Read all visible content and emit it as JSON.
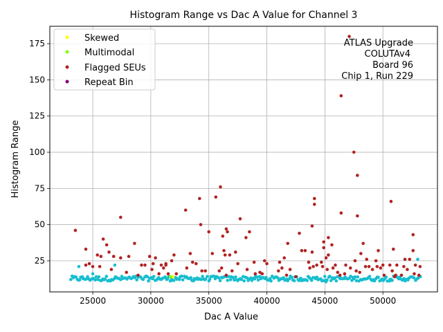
{
  "chart_data": {
    "type": "scatter",
    "title": "Histogram Range vs Dac A Value for Channel 3",
    "xlabel": "Dac A Value",
    "ylabel": "Histogram Range",
    "xlim": [
      21300,
      54700
    ],
    "ylim": [
      3.5,
      187
    ],
    "x_ticks": [
      25000,
      30000,
      35000,
      40000,
      45000,
      50000
    ],
    "y_ticks": [
      25,
      50,
      75,
      100,
      125,
      150,
      175
    ],
    "grid": true,
    "legend_location": "upper-left",
    "annotation": [
      "ATLAS Upgrade",
      "COLUTAv4",
      " Board 96",
      "Chip 1, Run 229"
    ],
    "colors": {
      "baseline": "#17becf",
      "skewed": "#ffff00",
      "multimodal": "#7fff00",
      "flagged": "#b22222",
      "repeat_bin": "#800080"
    },
    "series": [
      {
        "name": "Baseline",
        "color": "#17becf",
        "in_legend": false,
        "points": []
      },
      {
        "name": "Skewed",
        "color": "#ffff00",
        "in_legend": true,
        "points": [
          [
            31900,
            14
          ]
        ]
      },
      {
        "name": "Multimodal",
        "color": "#7fff00",
        "in_legend": true,
        "points": [
          [
            31700,
            14
          ]
        ]
      },
      {
        "name": "Flagged SEUs",
        "color": "#b22222",
        "in_legend": true,
        "points": [
          [
            23500,
            46
          ],
          [
            24400,
            22
          ],
          [
            24400,
            33
          ],
          [
            24700,
            23
          ],
          [
            25000,
            21
          ],
          [
            25400,
            29
          ],
          [
            25600,
            21
          ],
          [
            25700,
            28
          ],
          [
            25900,
            40
          ],
          [
            26200,
            36
          ],
          [
            26400,
            31
          ],
          [
            26600,
            19
          ],
          [
            26800,
            28
          ],
          [
            27400,
            55
          ],
          [
            27400,
            27
          ],
          [
            27900,
            17
          ],
          [
            28100,
            28
          ],
          [
            28600,
            37
          ],
          [
            28900,
            15
          ],
          [
            29200,
            22
          ],
          [
            29500,
            22
          ],
          [
            29900,
            28
          ],
          [
            30100,
            19
          ],
          [
            30200,
            23
          ],
          [
            30400,
            27
          ],
          [
            30700,
            16
          ],
          [
            30900,
            22
          ],
          [
            31100,
            20
          ],
          [
            31300,
            22
          ],
          [
            31300,
            23
          ],
          [
            31500,
            16
          ],
          [
            31800,
            25
          ],
          [
            32000,
            29
          ],
          [
            32200,
            16
          ],
          [
            33000,
            60
          ],
          [
            33100,
            20
          ],
          [
            33400,
            30
          ],
          [
            33600,
            24
          ],
          [
            33900,
            23
          ],
          [
            34200,
            68
          ],
          [
            34300,
            50
          ],
          [
            34400,
            18
          ],
          [
            34700,
            18
          ],
          [
            35000,
            45
          ],
          [
            35300,
            30
          ],
          [
            35600,
            69
          ],
          [
            35900,
            18
          ],
          [
            36000,
            76
          ],
          [
            36100,
            20
          ],
          [
            36200,
            42
          ],
          [
            36300,
            32
          ],
          [
            36400,
            29
          ],
          [
            36500,
            15
          ],
          [
            36500,
            47
          ],
          [
            36600,
            45
          ],
          [
            36800,
            29
          ],
          [
            37000,
            18
          ],
          [
            37300,
            31
          ],
          [
            37500,
            23
          ],
          [
            37700,
            54
          ],
          [
            38200,
            41
          ],
          [
            38300,
            19
          ],
          [
            38500,
            45
          ],
          [
            38900,
            24
          ],
          [
            39000,
            16
          ],
          [
            39400,
            17
          ],
          [
            39600,
            16
          ],
          [
            39800,
            25
          ],
          [
            40000,
            23
          ],
          [
            41000,
            18
          ],
          [
            41100,
            24
          ],
          [
            41300,
            20
          ],
          [
            41500,
            27
          ],
          [
            41700,
            15
          ],
          [
            41800,
            37
          ],
          [
            42000,
            19
          ],
          [
            42500,
            14
          ],
          [
            42800,
            44
          ],
          [
            43000,
            32
          ],
          [
            43300,
            32
          ],
          [
            43600,
            24
          ],
          [
            43700,
            20
          ],
          [
            43900,
            31
          ],
          [
            43900,
            49
          ],
          [
            44000,
            21
          ],
          [
            44100,
            64
          ],
          [
            44100,
            68
          ],
          [
            44300,
            22
          ],
          [
            44700,
            24
          ],
          [
            44800,
            21
          ],
          [
            44900,
            34
          ],
          [
            44900,
            38
          ],
          [
            45100,
            27
          ],
          [
            45200,
            19
          ],
          [
            45300,
            29
          ],
          [
            45300,
            41
          ],
          [
            45600,
            36
          ],
          [
            45700,
            20
          ],
          [
            45900,
            22
          ],
          [
            46100,
            17
          ],
          [
            46300,
            15
          ],
          [
            46400,
            58
          ],
          [
            46400,
            139
          ],
          [
            46700,
            16
          ],
          [
            46800,
            22
          ],
          [
            47100,
            180
          ],
          [
            47200,
            20
          ],
          [
            47500,
            100
          ],
          [
            47600,
            25
          ],
          [
            47700,
            18
          ],
          [
            47800,
            56
          ],
          [
            47800,
            84
          ],
          [
            48000,
            17
          ],
          [
            48100,
            30
          ],
          [
            48300,
            37
          ],
          [
            48500,
            21
          ],
          [
            48600,
            26
          ],
          [
            48800,
            21
          ],
          [
            49100,
            19
          ],
          [
            49400,
            25
          ],
          [
            49500,
            21
          ],
          [
            49600,
            32
          ],
          [
            49800,
            20
          ],
          [
            50000,
            22
          ],
          [
            50100,
            15
          ],
          [
            50600,
            22
          ],
          [
            50700,
            66
          ],
          [
            50800,
            18
          ],
          [
            50900,
            33
          ],
          [
            51000,
            14
          ],
          [
            51100,
            15
          ],
          [
            51200,
            22
          ],
          [
            51600,
            15
          ],
          [
            51800,
            21
          ],
          [
            51900,
            26
          ],
          [
            52100,
            19
          ],
          [
            52300,
            26
          ],
          [
            52600,
            32
          ],
          [
            52600,
            43
          ],
          [
            52700,
            16
          ],
          [
            52800,
            22
          ],
          [
            53100,
            15
          ],
          [
            53200,
            21
          ]
        ]
      },
      {
        "name": "Repeat Bin",
        "color": "#800080",
        "in_legend": true,
        "points": []
      }
    ]
  }
}
